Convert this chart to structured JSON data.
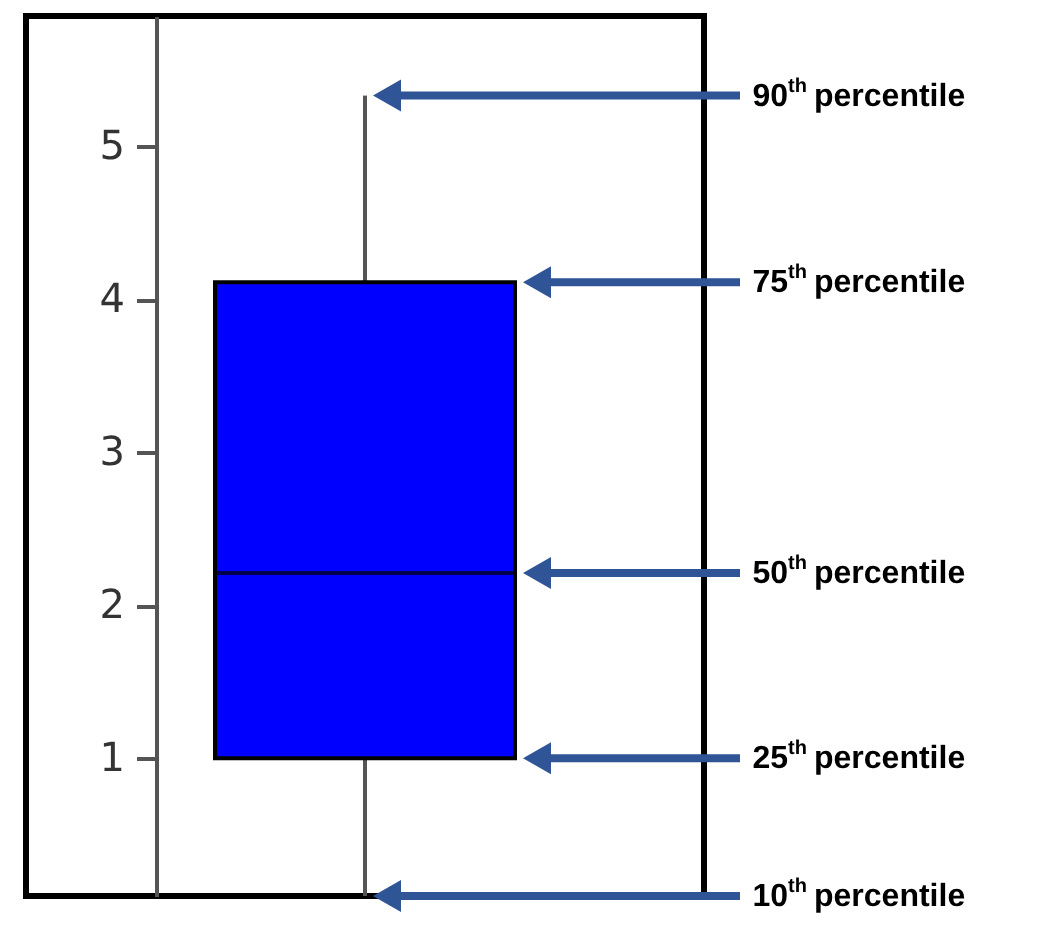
{
  "chart_data": {
    "type": "box",
    "categories": [
      null
    ],
    "color": "#0000ff",
    "boxes": [
      {
        "low": 0.1,
        "q1": 1.0,
        "median": 2.21,
        "q3": 4.11,
        "high": 5.33
      }
    ],
    "ylim": [
      0.1,
      5.85
    ],
    "yticks": [
      1,
      2,
      3,
      4,
      5
    ],
    "grid": false,
    "annotations": [
      "90$^{th}$ percentile",
      "75$^{th}$ percentile",
      "50$^{th}$ percentile",
      "25$^{th}$ percentile",
      "10$^{th}$ percentile"
    ]
  }
}
